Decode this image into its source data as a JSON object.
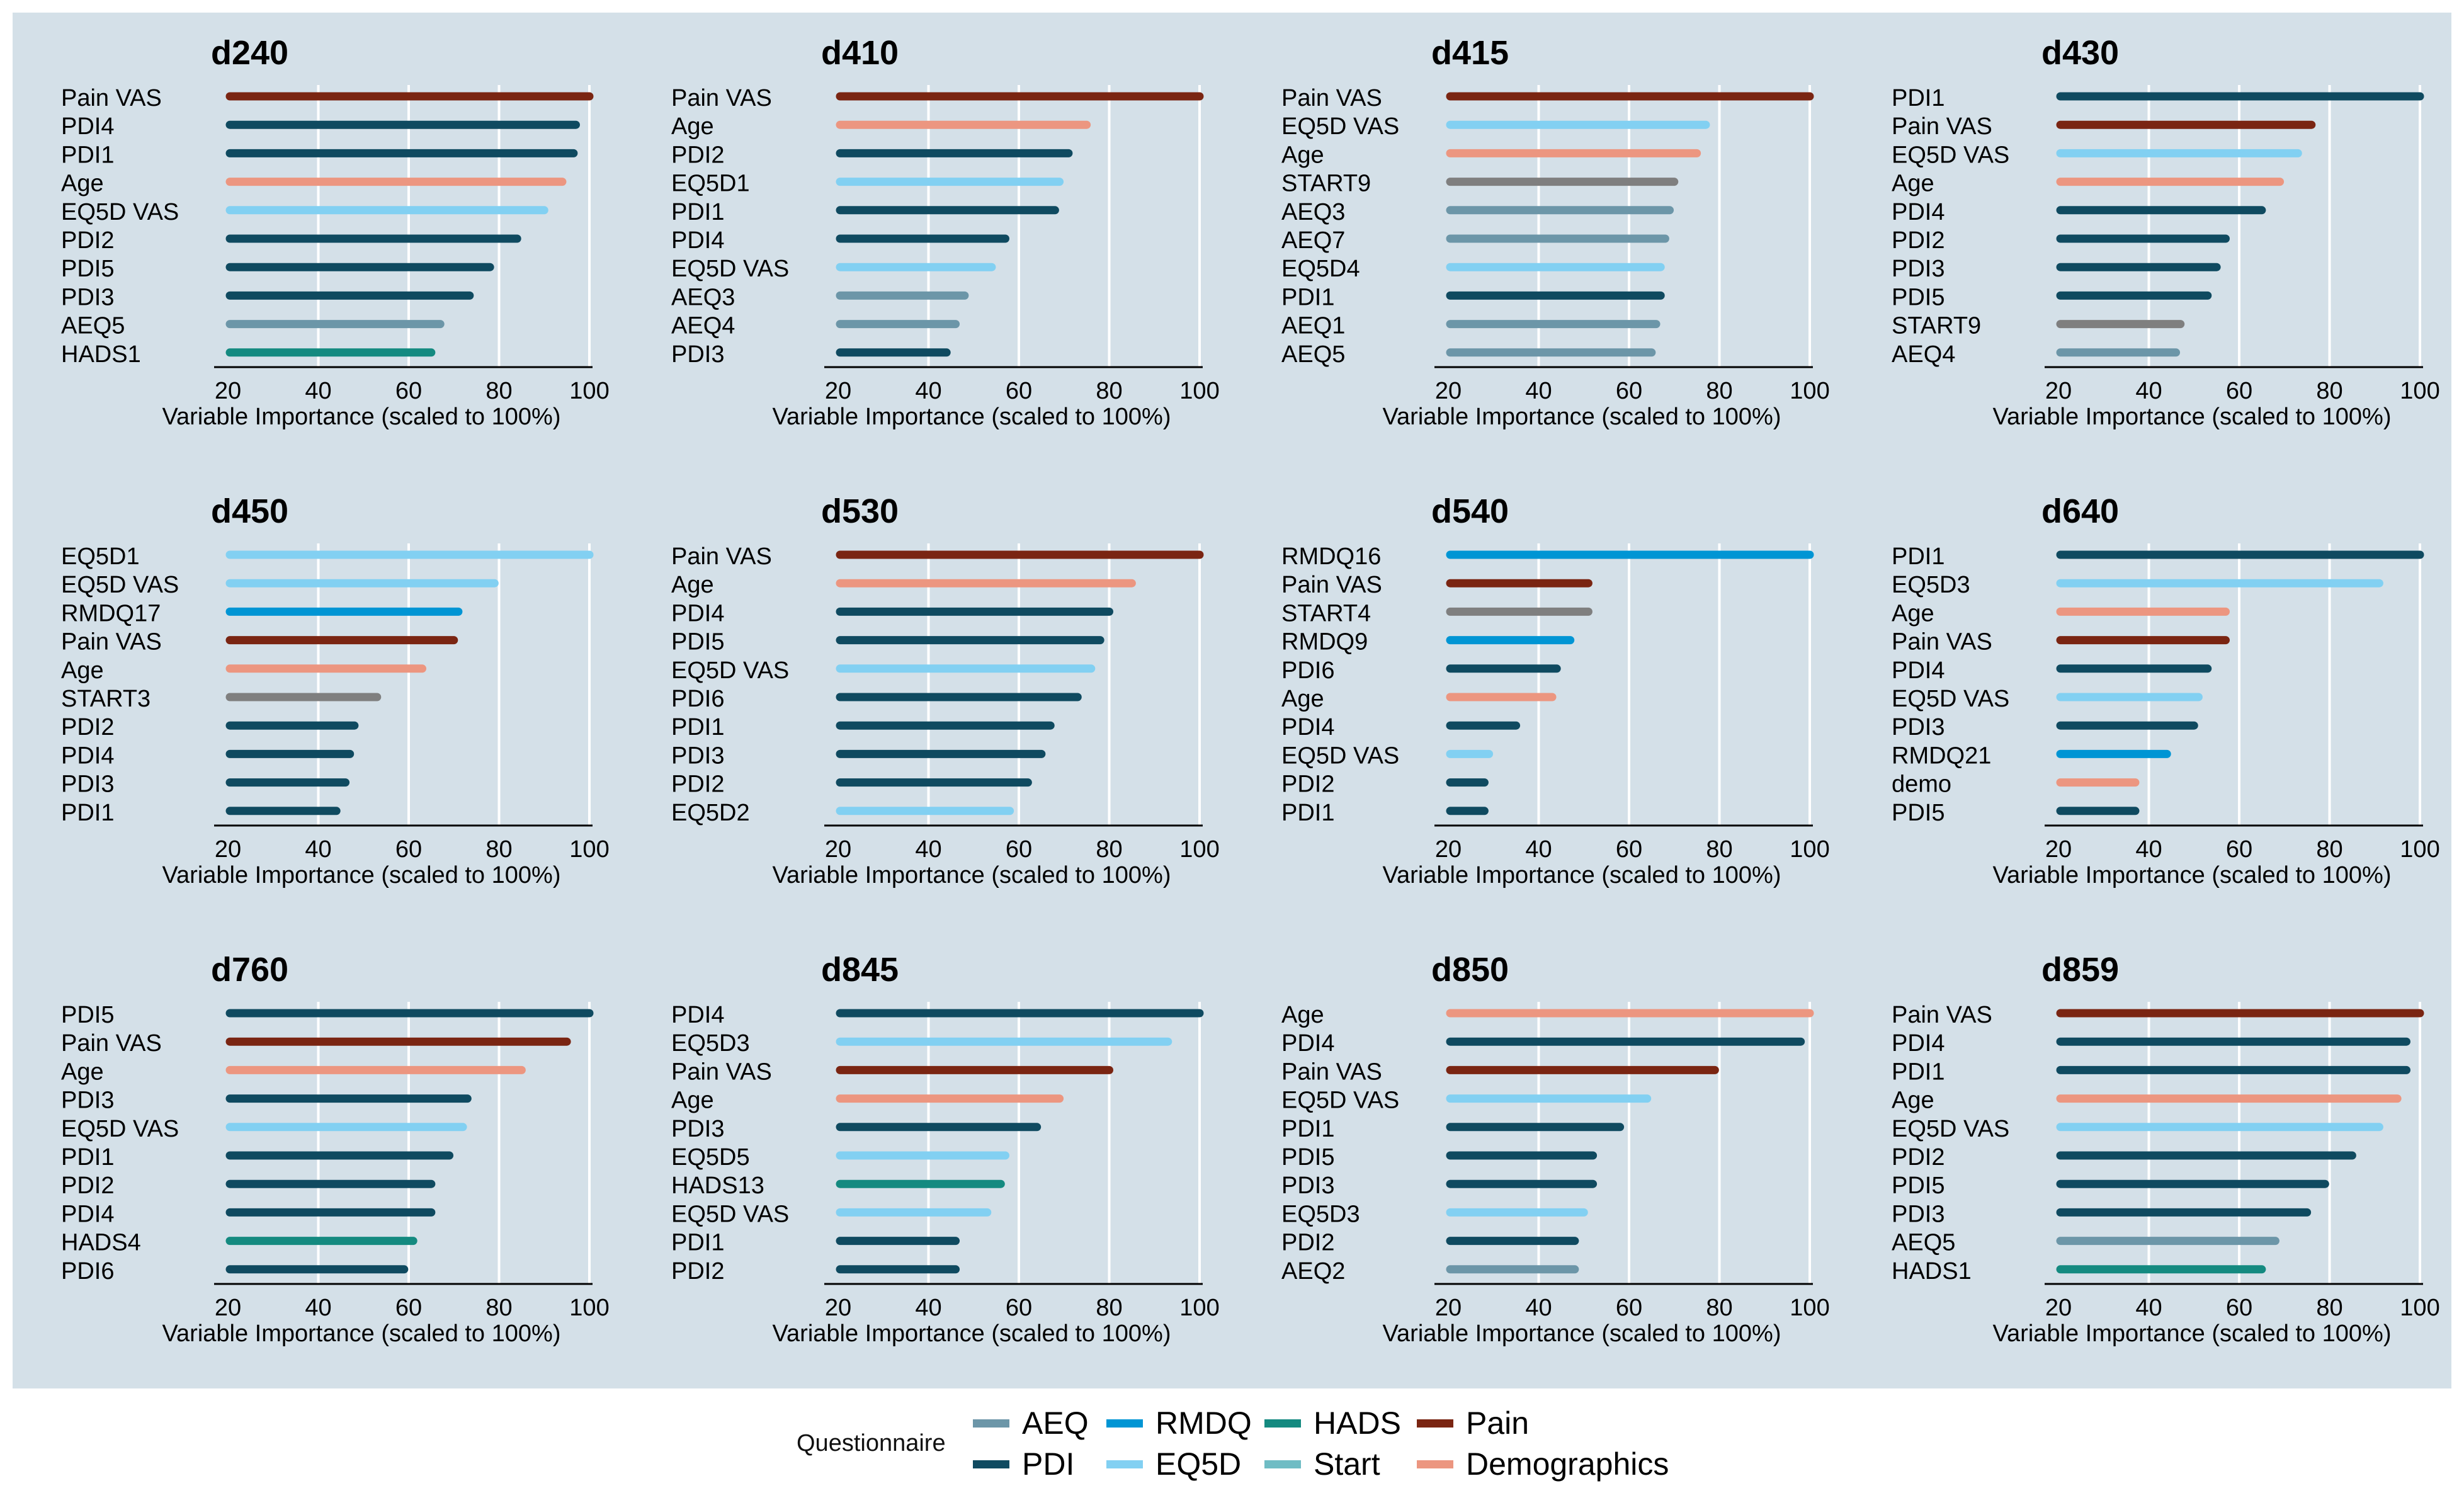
{
  "legend": {
    "title": "Questionnaire",
    "items": [
      {
        "name": "AEQ",
        "color": "#6c96a8"
      },
      {
        "name": "RMDQ",
        "color": "#0095d4"
      },
      {
        "name": "HADS",
        "color": "#148a80"
      },
      {
        "name": "Pain",
        "color": "#7a2512"
      },
      {
        "name": "PDI",
        "color": "#0f4a60"
      },
      {
        "name": "EQ5D",
        "color": "#82d0f2"
      },
      {
        "name": "Start",
        "color": "#6fbcc4"
      },
      {
        "name": "Demographics",
        "color": "#ec9680"
      }
    ]
  },
  "chart_data": [
    {
      "type": "bar",
      "title": "d240",
      "xlabel": "Variable Importance (scaled to 100%)",
      "ylabel": "",
      "xlim": [
        20,
        100
      ],
      "xticks": [
        20,
        40,
        60,
        80,
        100
      ],
      "categories": [
        "Pain VAS",
        "PDI4",
        "PDI1",
        "Age",
        "EQ5D VAS",
        "PDI2",
        "PDI5",
        "PDI3",
        "AEQ5",
        "HADS1"
      ],
      "values": [
        100,
        97,
        96.5,
        94,
        90,
        84,
        78,
        73.5,
        67,
        65
      ],
      "groups": [
        "Pain",
        "PDI",
        "PDI",
        "Demographics",
        "EQ5D",
        "PDI",
        "PDI",
        "PDI",
        "AEQ",
        "HADS"
      ]
    },
    {
      "type": "bar",
      "title": "d410",
      "xlabel": "Variable Importance (scaled to 100%)",
      "ylabel": "",
      "xlim": [
        20,
        100
      ],
      "xticks": [
        20,
        40,
        60,
        80,
        100
      ],
      "categories": [
        "Pain VAS",
        "Age",
        "PDI2",
        "EQ5D1",
        "PDI1",
        "PDI4",
        "EQ5D VAS",
        "AEQ3",
        "AEQ4",
        "PDI3"
      ],
      "values": [
        100,
        75,
        71,
        69,
        68,
        57,
        54,
        48,
        46,
        44
      ],
      "groups": [
        "Pain",
        "Demographics",
        "PDI",
        "EQ5D",
        "PDI",
        "PDI",
        "EQ5D",
        "AEQ",
        "AEQ",
        "PDI"
      ]
    },
    {
      "type": "bar",
      "title": "d415",
      "xlabel": "Variable Importance (scaled to 100%)",
      "ylabel": "",
      "xlim": [
        20,
        100
      ],
      "xticks": [
        20,
        40,
        60,
        80,
        100
      ],
      "categories": [
        "Pain VAS",
        "EQ5D VAS",
        "Age",
        "START9",
        "AEQ3",
        "AEQ7",
        "EQ5D4",
        "PDI1",
        "AEQ1",
        "AEQ5"
      ],
      "values": [
        100,
        77,
        75,
        70,
        69,
        68,
        67,
        67,
        66,
        65
      ],
      "groups": [
        "Pain",
        "EQ5D",
        "Demographics",
        "Start",
        "AEQ",
        "AEQ",
        "EQ5D",
        "PDI",
        "AEQ",
        "AEQ"
      ]
    },
    {
      "type": "bar",
      "title": "d430",
      "xlabel": "Variable Importance (scaled to 100%)",
      "ylabel": "",
      "xlim": [
        20,
        100
      ],
      "xticks": [
        20,
        40,
        60,
        80,
        100
      ],
      "categories": [
        "PDI1",
        "Pain VAS",
        "EQ5D VAS",
        "Age",
        "PDI4",
        "PDI2",
        "PDI3",
        "PDI5",
        "START9",
        "AEQ4"
      ],
      "values": [
        100,
        76,
        73,
        69,
        65,
        57,
        55,
        53,
        47,
        46
      ],
      "groups": [
        "PDI",
        "Pain",
        "EQ5D",
        "Demographics",
        "PDI",
        "PDI",
        "PDI",
        "PDI",
        "Start",
        "AEQ"
      ]
    },
    {
      "type": "bar",
      "title": "d450",
      "xlabel": "Variable Importance (scaled to 100%)",
      "ylabel": "",
      "xlim": [
        20,
        100
      ],
      "xticks": [
        20,
        40,
        60,
        80,
        100
      ],
      "categories": [
        "EQ5D1",
        "EQ5D VAS",
        "RMDQ17",
        "Pain VAS",
        "Age",
        "START3",
        "PDI2",
        "PDI4",
        "PDI3",
        "PDI1"
      ],
      "values": [
        100,
        79,
        71,
        70,
        63,
        53,
        48,
        47,
        46,
        44
      ],
      "groups": [
        "EQ5D",
        "EQ5D",
        "RMDQ",
        "Pain",
        "Demographics",
        "Start",
        "PDI",
        "PDI",
        "PDI",
        "PDI"
      ]
    },
    {
      "type": "bar",
      "title": "d530",
      "xlabel": "Variable Importance (scaled to 100%)",
      "ylabel": "",
      "xlim": [
        20,
        100
      ],
      "xticks": [
        20,
        40,
        60,
        80,
        100
      ],
      "categories": [
        "Pain VAS",
        "Age",
        "PDI4",
        "PDI5",
        "EQ5D VAS",
        "PDI6",
        "PDI1",
        "PDI3",
        "PDI2",
        "EQ5D2"
      ],
      "values": [
        100,
        85,
        80,
        78,
        76,
        73,
        67,
        65,
        62,
        58
      ],
      "groups": [
        "Pain",
        "Demographics",
        "PDI",
        "PDI",
        "EQ5D",
        "PDI",
        "PDI",
        "PDI",
        "PDI",
        "EQ5D"
      ]
    },
    {
      "type": "bar",
      "title": "d540",
      "xlabel": "Variable Importance (scaled to 100%)",
      "ylabel": "",
      "xlim": [
        20,
        100
      ],
      "xticks": [
        20,
        40,
        60,
        80,
        100
      ],
      "categories": [
        "RMDQ16",
        "Pain VAS",
        "START4",
        "RMDQ9",
        "PDI6",
        "Age",
        "PDI4",
        "EQ5D VAS",
        "PDI2",
        "PDI1"
      ],
      "values": [
        100,
        51,
        51,
        47,
        44,
        43,
        35,
        29,
        28,
        28
      ],
      "groups": [
        "RMDQ",
        "Pain",
        "Start",
        "RMDQ",
        "PDI",
        "Demographics",
        "PDI",
        "EQ5D",
        "PDI",
        "PDI"
      ]
    },
    {
      "type": "bar",
      "title": "d640",
      "xlabel": "Variable Importance (scaled to 100%)",
      "ylabel": "",
      "xlim": [
        20,
        100
      ],
      "xticks": [
        20,
        40,
        60,
        80,
        100
      ],
      "categories": [
        "PDI1",
        "EQ5D3",
        "Age",
        "Pain VAS",
        "PDI4",
        "EQ5D VAS",
        "PDI3",
        "RMDQ21",
        "demo",
        "PDI5"
      ],
      "values": [
        100,
        91,
        57,
        57,
        53,
        51,
        50,
        44,
        37,
        37
      ],
      "groups": [
        "PDI",
        "EQ5D",
        "Demographics",
        "Pain",
        "PDI",
        "EQ5D",
        "PDI",
        "RMDQ",
        "Demographics",
        "PDI"
      ]
    },
    {
      "type": "bar",
      "title": "d760",
      "xlabel": "Variable Importance (scaled to 100%)",
      "ylabel": "",
      "xlim": [
        20,
        100
      ],
      "xticks": [
        20,
        40,
        60,
        80,
        100
      ],
      "categories": [
        "PDI5",
        "Pain VAS",
        "Age",
        "PDI3",
        "EQ5D VAS",
        "PDI1",
        "PDI2",
        "PDI4",
        "HADS4",
        "PDI6"
      ],
      "values": [
        100,
        95,
        85,
        73,
        72,
        69,
        65,
        65,
        61,
        59
      ],
      "groups": [
        "PDI",
        "Pain",
        "Demographics",
        "PDI",
        "EQ5D",
        "PDI",
        "PDI",
        "PDI",
        "HADS",
        "PDI"
      ]
    },
    {
      "type": "bar",
      "title": "d845",
      "xlabel": "Variable Importance (scaled to 100%)",
      "ylabel": "",
      "xlim": [
        20,
        100
      ],
      "xticks": [
        20,
        40,
        60,
        80,
        100
      ],
      "categories": [
        "PDI4",
        "EQ5D3",
        "Pain VAS",
        "Age",
        "PDI3",
        "EQ5D5",
        "HADS13",
        "EQ5D VAS",
        "PDI1",
        "PDI2"
      ],
      "values": [
        100,
        93,
        80,
        69,
        64,
        57,
        56,
        53,
        46,
        46
      ],
      "groups": [
        "PDI",
        "EQ5D",
        "Pain",
        "Demographics",
        "PDI",
        "EQ5D",
        "HADS",
        "EQ5D",
        "PDI",
        "PDI"
      ]
    },
    {
      "type": "bar",
      "title": "d850",
      "xlabel": "Variable Importance (scaled to 100%)",
      "ylabel": "",
      "xlim": [
        20,
        100
      ],
      "xticks": [
        20,
        40,
        60,
        80,
        100
      ],
      "categories": [
        "Age",
        "PDI4",
        "Pain VAS",
        "EQ5D VAS",
        "PDI1",
        "PDI5",
        "PDI3",
        "EQ5D3",
        "PDI2",
        "AEQ2"
      ],
      "values": [
        100,
        98,
        79,
        64,
        58,
        52,
        52,
        50,
        48,
        48
      ],
      "groups": [
        "Demographics",
        "PDI",
        "Pain",
        "EQ5D",
        "PDI",
        "PDI",
        "PDI",
        "EQ5D",
        "PDI",
        "AEQ"
      ]
    },
    {
      "type": "bar",
      "title": "d859",
      "xlabel": "Variable Importance (scaled to 100%)",
      "ylabel": "",
      "xlim": [
        20,
        100
      ],
      "xticks": [
        20,
        40,
        60,
        80,
        100
      ],
      "categories": [
        "Pain VAS",
        "PDI4",
        "PDI1",
        "Age",
        "EQ5D VAS",
        "PDI2",
        "PDI5",
        "PDI3",
        "AEQ5",
        "HADS1"
      ],
      "values": [
        100,
        97,
        97,
        95,
        91,
        85,
        79,
        75,
        68,
        65
      ],
      "groups": [
        "Pain",
        "PDI",
        "PDI",
        "Demographics",
        "EQ5D",
        "PDI",
        "PDI",
        "PDI",
        "AEQ",
        "HADS"
      ]
    }
  ]
}
